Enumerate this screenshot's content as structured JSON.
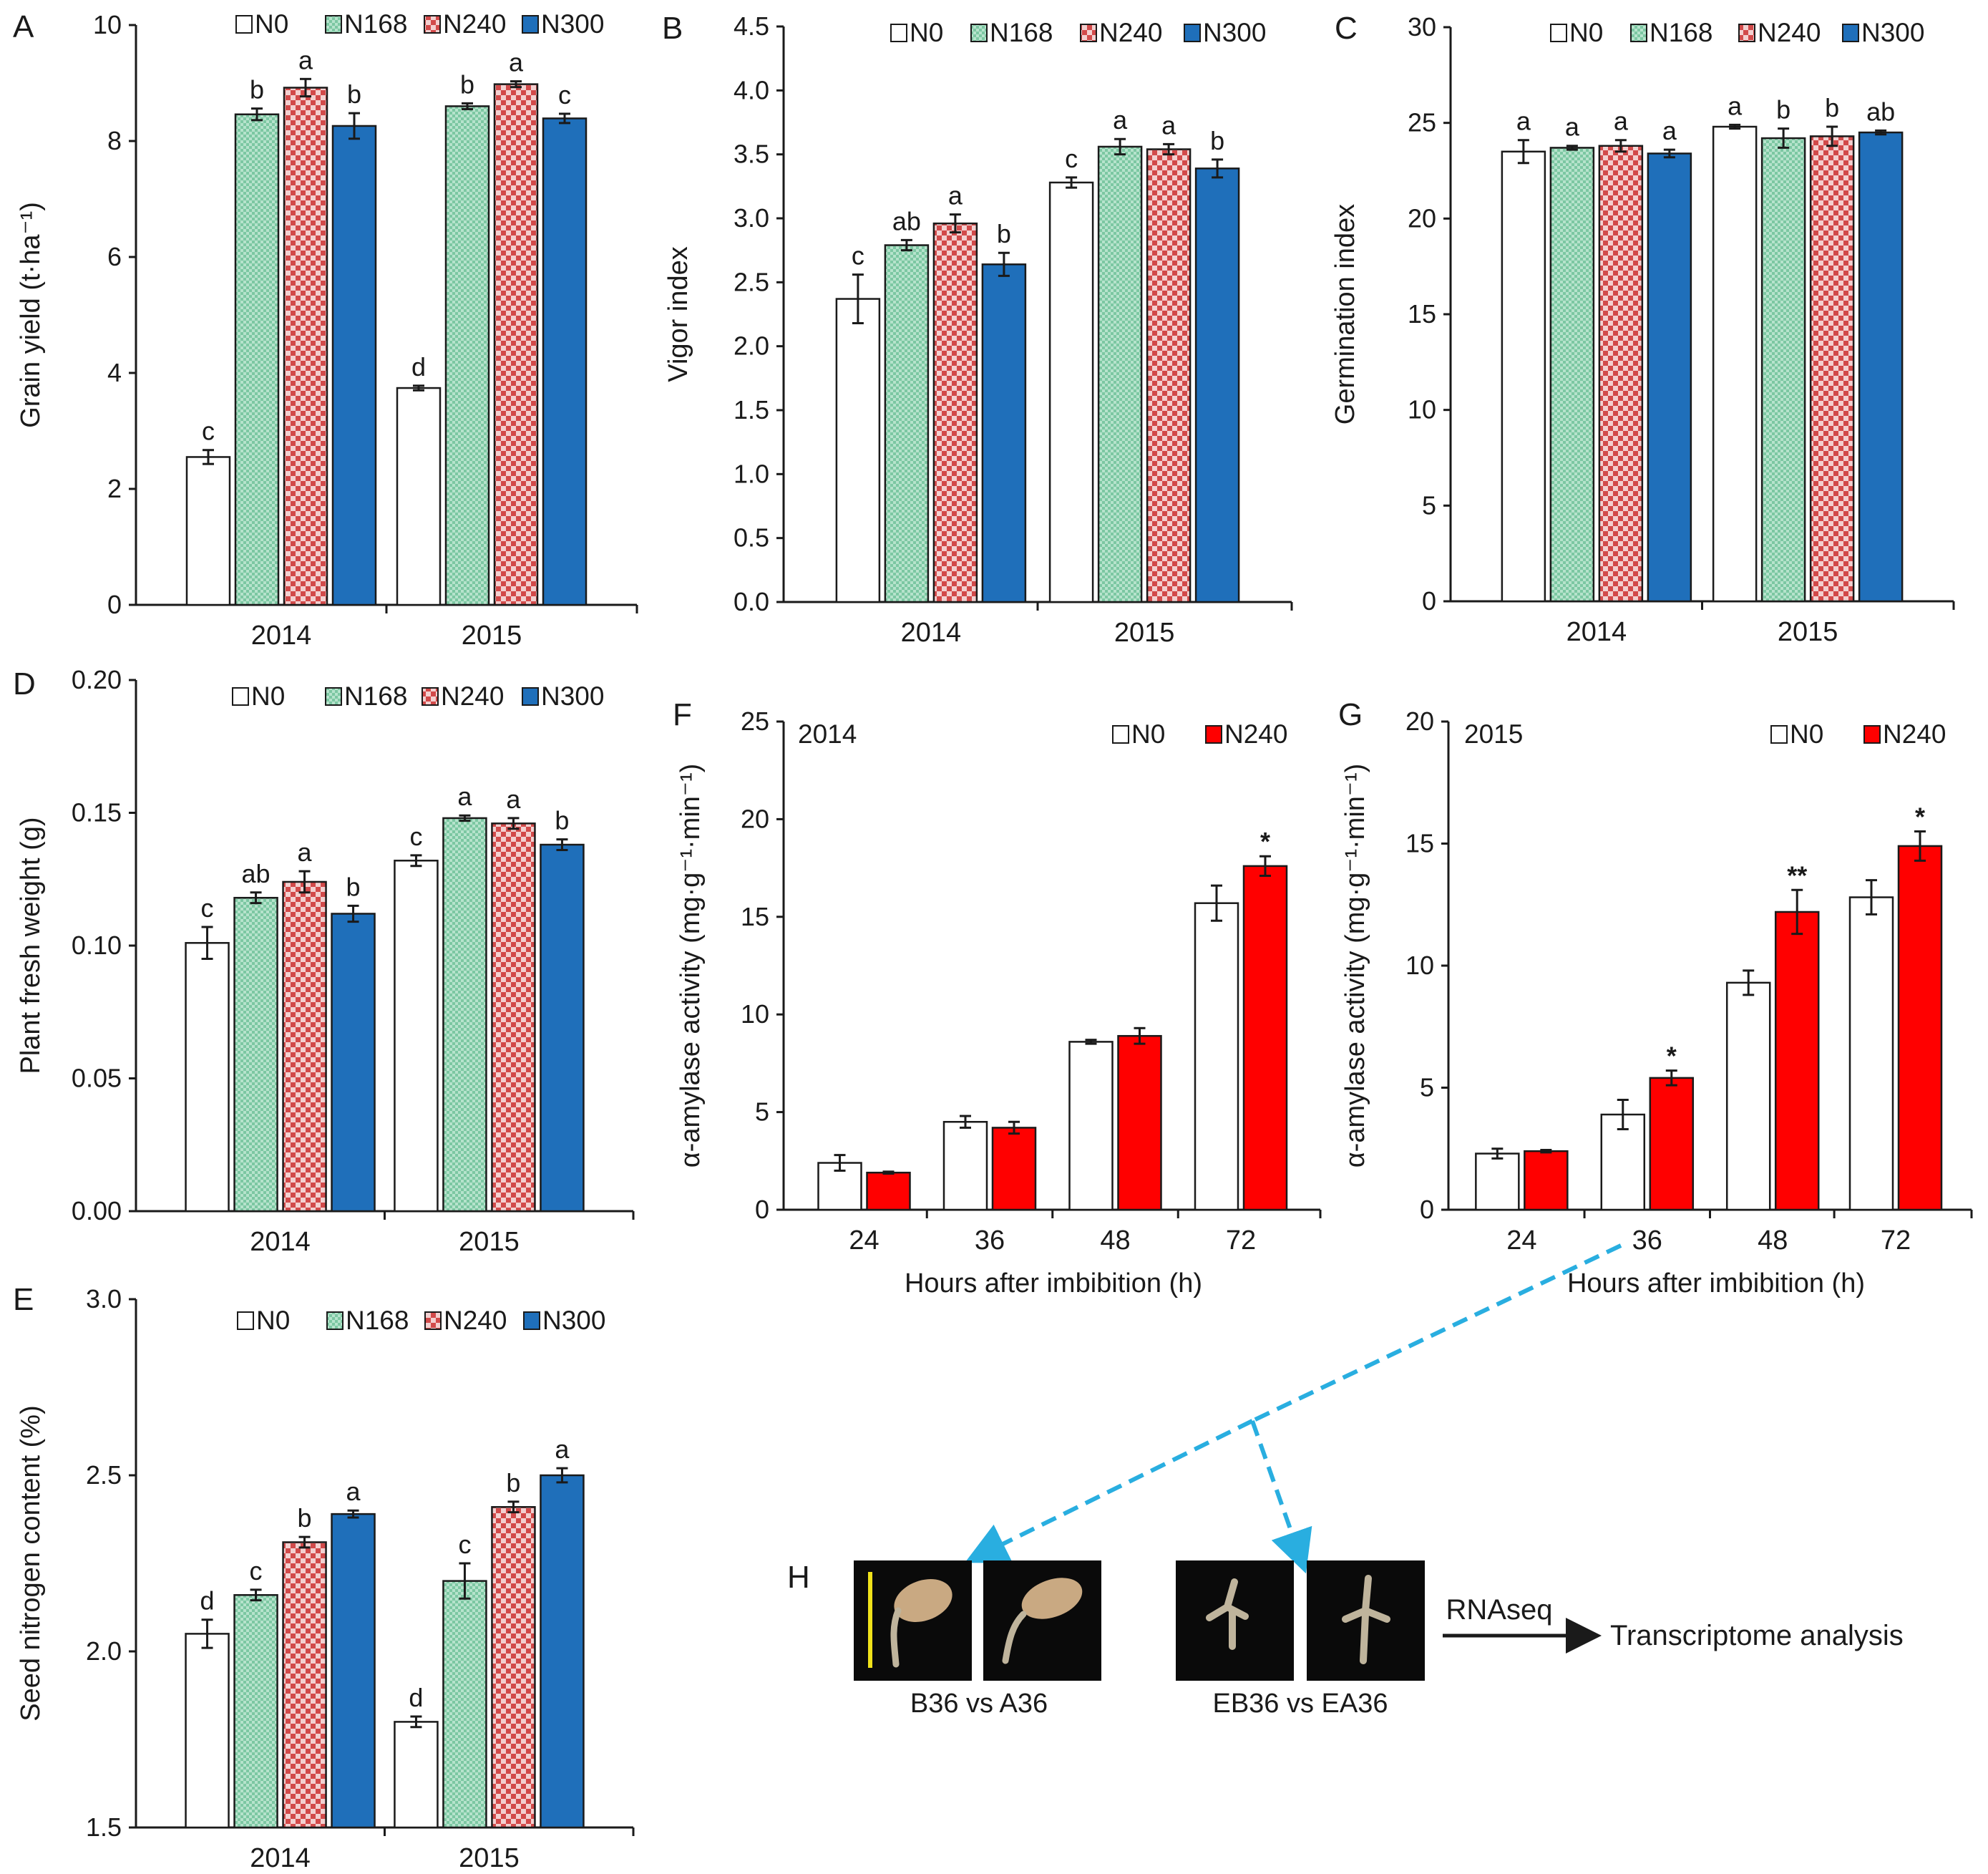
{
  "colors": {
    "N0": "#ffffff",
    "N168": "#9fd8bd",
    "N240": "#e08585",
    "N300": "#1f6fba",
    "N240_red": "#ff0000",
    "arrow": "#29aee0",
    "scalebar": "#f0e21a"
  },
  "chart_data": [
    {
      "id": "A",
      "type": "bar",
      "ylabel": "Grain yield (t·ha⁻¹)",
      "categories": [
        "2014",
        "2015"
      ],
      "ylim": [
        0,
        10
      ],
      "yticks": [
        "0",
        "2",
        "4",
        "6",
        "8",
        "10"
      ],
      "series": [
        {
          "name": "N0",
          "values": [
            2.55,
            3.74
          ],
          "err": [
            0.12,
            0.04
          ],
          "sig": [
            "c",
            "d"
          ]
        },
        {
          "name": "N168",
          "values": [
            8.46,
            8.6
          ],
          "err": [
            0.1,
            0.05
          ],
          "sig": [
            "b",
            "b"
          ]
        },
        {
          "name": "N240",
          "values": [
            8.92,
            8.98
          ],
          "err": [
            0.15,
            0.05
          ],
          "sig": [
            "a",
            "a"
          ]
        },
        {
          "name": "N300",
          "values": [
            8.26,
            8.39
          ],
          "err": [
            0.22,
            0.08
          ],
          "sig": [
            "b",
            "c"
          ]
        }
      ]
    },
    {
      "id": "B",
      "type": "bar",
      "ylabel": "Vigor index",
      "categories": [
        "2014",
        "2015"
      ],
      "ylim": [
        0,
        4.5
      ],
      "yticks": [
        "0.0",
        "0.5",
        "1.0",
        "1.5",
        "2.0",
        "2.5",
        "3.0",
        "3.5",
        "4.0",
        "4.5"
      ],
      "series": [
        {
          "name": "N0",
          "values": [
            2.37,
            3.28
          ],
          "err": [
            0.19,
            0.04
          ],
          "sig": [
            "c",
            "c"
          ]
        },
        {
          "name": "N168",
          "values": [
            2.79,
            3.56
          ],
          "err": [
            0.04,
            0.06
          ],
          "sig": [
            "ab",
            "a"
          ]
        },
        {
          "name": "N240",
          "values": [
            2.96,
            3.54
          ],
          "err": [
            0.07,
            0.04
          ],
          "sig": [
            "a",
            "a"
          ]
        },
        {
          "name": "N300",
          "values": [
            2.64,
            3.39
          ],
          "err": [
            0.09,
            0.07
          ],
          "sig": [
            "b",
            "b"
          ]
        }
      ]
    },
    {
      "id": "C",
      "type": "bar",
      "ylabel": "Germination index",
      "categories": [
        "2014",
        "2015"
      ],
      "ylim": [
        0,
        30
      ],
      "yticks": [
        "0",
        "5",
        "10",
        "15",
        "20",
        "25",
        "30"
      ],
      "series": [
        {
          "name": "N0",
          "values": [
            23.5,
            24.8
          ],
          "err": [
            0.6,
            0.1
          ],
          "sig": [
            "a",
            "a"
          ]
        },
        {
          "name": "N168",
          "values": [
            23.7,
            24.2
          ],
          "err": [
            0.1,
            0.5
          ],
          "sig": [
            "a",
            "b"
          ]
        },
        {
          "name": "N240",
          "values": [
            23.8,
            24.3
          ],
          "err": [
            0.3,
            0.5
          ],
          "sig": [
            "a",
            "b"
          ]
        },
        {
          "name": "N300",
          "values": [
            23.4,
            24.5
          ],
          "err": [
            0.2,
            0.1
          ],
          "sig": [
            "a",
            "ab"
          ]
        }
      ]
    },
    {
      "id": "D",
      "type": "bar",
      "ylabel": "Plant fresh weight (g)",
      "categories": [
        "2014",
        "2015"
      ],
      "ylim": [
        0,
        0.2
      ],
      "yticks": [
        "0.00",
        "0.05",
        "0.10",
        "0.15",
        "0.20"
      ],
      "series": [
        {
          "name": "N0",
          "values": [
            0.101,
            0.132
          ],
          "err": [
            0.006,
            0.002
          ],
          "sig": [
            "c",
            "c"
          ]
        },
        {
          "name": "N168",
          "values": [
            0.118,
            0.148
          ],
          "err": [
            0.002,
            0.001
          ],
          "sig": [
            "ab",
            "a"
          ]
        },
        {
          "name": "N240",
          "values": [
            0.124,
            0.146
          ],
          "err": [
            0.004,
            0.002
          ],
          "sig": [
            "a",
            "a"
          ]
        },
        {
          "name": "N300",
          "values": [
            0.112,
            0.138
          ],
          "err": [
            0.003,
            0.002
          ],
          "sig": [
            "b",
            "b"
          ]
        }
      ]
    },
    {
      "id": "E",
      "type": "bar",
      "ylabel": "Seed nitrogen content (%)",
      "categories": [
        "2014",
        "2015"
      ],
      "ylim": [
        1.5,
        3.0
      ],
      "yticks": [
        "1.5",
        "2.0",
        "2.5",
        "3.0"
      ],
      "series": [
        {
          "name": "N0",
          "values": [
            2.05,
            1.8
          ],
          "err": [
            0.04,
            0.015
          ],
          "sig": [
            "d",
            "d"
          ]
        },
        {
          "name": "N168",
          "values": [
            2.16,
            2.2
          ],
          "err": [
            0.015,
            0.05
          ],
          "sig": [
            "c",
            "c"
          ]
        },
        {
          "name": "N240",
          "values": [
            2.31,
            2.41
          ],
          "err": [
            0.015,
            0.015
          ],
          "sig": [
            "b",
            "b"
          ]
        },
        {
          "name": "N300",
          "values": [
            2.39,
            2.5
          ],
          "err": [
            0.01,
            0.02
          ],
          "sig": [
            "a",
            "a"
          ]
        }
      ]
    },
    {
      "id": "F",
      "type": "bar",
      "title": "2014",
      "ylabel": "α-amylase activity (mg·g⁻¹·min⁻¹)",
      "xlabel": "Hours after imbibition (h)",
      "categories": [
        "24",
        "36",
        "48",
        "72"
      ],
      "ylim": [
        0,
        25
      ],
      "yticks": [
        "0",
        "5",
        "10",
        "15",
        "20",
        "25"
      ],
      "series": [
        {
          "name": "N0",
          "values": [
            2.4,
            4.5,
            8.6,
            15.7
          ],
          "err": [
            0.4,
            0.3,
            0.1,
            0.9
          ],
          "sig": [
            "",
            "",
            "",
            ""
          ]
        },
        {
          "name": "N240",
          "values": [
            1.9,
            4.2,
            8.9,
            17.6
          ],
          "err": [
            0.05,
            0.3,
            0.4,
            0.5
          ],
          "sig": [
            "",
            "",
            "",
            "*"
          ]
        }
      ]
    },
    {
      "id": "G",
      "type": "bar",
      "title": "2015",
      "ylabel": "α-amylase activity (mg·g⁻¹·min⁻¹)",
      "xlabel": "Hours after imbibition (h)",
      "categories": [
        "24",
        "36",
        "48",
        "72"
      ],
      "ylim": [
        0,
        20
      ],
      "yticks": [
        "0",
        "5",
        "10",
        "15",
        "20"
      ],
      "series": [
        {
          "name": "N0",
          "values": [
            2.3,
            3.9,
            9.3,
            12.8
          ],
          "err": [
            0.2,
            0.6,
            0.5,
            0.7
          ],
          "sig": [
            "",
            "",
            "",
            ""
          ]
        },
        {
          "name": "N240",
          "values": [
            2.4,
            5.4,
            12.2,
            14.9
          ],
          "err": [
            0.05,
            0.3,
            0.9,
            0.6
          ],
          "sig": [
            "",
            "*",
            "**",
            "*"
          ]
        }
      ]
    }
  ],
  "panel_h": {
    "letter": "H",
    "pair1_label": "B36 vs A36",
    "pair2_label": "EB36 vs EA36",
    "arrow_label": "RNAseq",
    "result_label": "Transcriptome analysis"
  }
}
